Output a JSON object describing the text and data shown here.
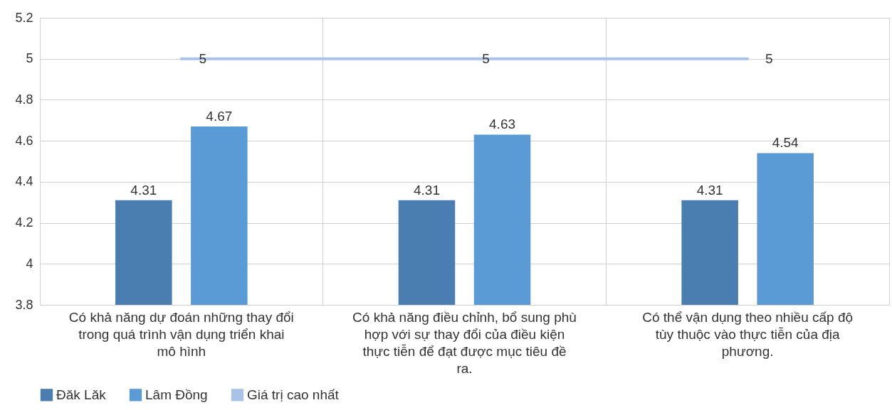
{
  "chart_data": {
    "type": "bar",
    "categories": [
      "Có khả năng dự đoán những thay đổi trong quá trình vận dụng triển khai mô hình",
      "Có khả năng điều chỉnh, bổ sung phù hợp với sự thay đổi của điều kiện thực tiễn để đạt được mục tiêu đề ra.",
      "Có thể vận dụng theo nhiều cấp độ tùy thuộc vào thực tiễn của địa phương."
    ],
    "series": [
      {
        "name": "Đăk Lăk",
        "color": "#4a7eb0",
        "values": [
          4.31,
          4.31,
          4.31
        ]
      },
      {
        "name": "Lâm Đồng",
        "color": "#5b9bd5",
        "values": [
          4.67,
          4.63,
          4.54
        ]
      },
      {
        "name": "Giá trị cao nhất",
        "type": "line",
        "color": "#a9c3e8",
        "values": [
          5,
          5,
          5
        ]
      }
    ],
    "ylim": [
      3.8,
      5.2
    ],
    "yticks": [
      3.8,
      4,
      4.2,
      4.4,
      4.6,
      4.8,
      5,
      5.2
    ],
    "grid": true,
    "legend": "bottom",
    "data_labels": true
  }
}
